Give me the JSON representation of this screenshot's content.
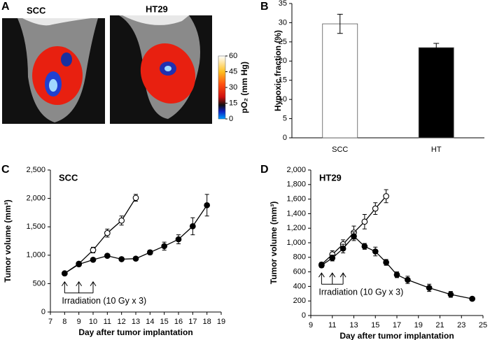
{
  "panel_a": {
    "label": "A",
    "images": [
      {
        "label": "SCC"
      },
      {
        "label": "HT29"
      }
    ],
    "colorbar": {
      "label": "pO₂ (mm Hg)",
      "lim": [
        0,
        60
      ],
      "ticks": [
        0,
        15,
        30,
        45,
        60
      ]
    }
  },
  "chart_data": [
    {
      "type": "bar",
      "panel": "B",
      "y_label": "Hypoxic fraction (%)",
      "categories": [
        "SCC",
        "HT"
      ],
      "values": [
        29.7,
        23.5
      ],
      "errors": [
        2.5,
        1.1
      ],
      "colors": [
        "#ffffff",
        "#000000"
      ],
      "ylim": [
        0,
        35
      ],
      "yticks": [
        0,
        5,
        10,
        15,
        20,
        25,
        30,
        35
      ]
    },
    {
      "type": "line",
      "panel": "C",
      "title": "SCC",
      "x_label": "Day after tumor implantation",
      "y_label": "Tumor volume (mm³)",
      "annotation": "Irradiation (10 Gy x 3)",
      "irradiation_days": [
        8,
        9,
        10
      ],
      "xlim": [
        7,
        19
      ],
      "xticks": [
        7,
        8,
        9,
        10,
        11,
        12,
        13,
        14,
        15,
        16,
        17,
        18,
        19
      ],
      "ylim": [
        0,
        2500
      ],
      "yticks": [
        0,
        500,
        {
          "value": 1000,
          "label": "1,000"
        },
        {
          "value": 1500,
          "label": "1,500"
        },
        {
          "value": 2000,
          "label": "2,000"
        },
        {
          "value": 2500,
          "label": "2,500"
        }
      ],
      "color": "#000000",
      "series": [
        {
          "marker": "open",
          "x": [
            8,
            9,
            10,
            11,
            12,
            13
          ],
          "values": [
            680,
            850,
            1090,
            1390,
            1610,
            2010
          ],
          "errors": [
            20,
            30,
            50,
            70,
            80,
            60
          ]
        },
        {
          "marker": "filled",
          "x": [
            8,
            9,
            10,
            11,
            12,
            13,
            14,
            15,
            16,
            17,
            18
          ],
          "values": [
            680,
            840,
            920,
            990,
            930,
            940,
            1050,
            1160,
            1280,
            1510,
            1880
          ],
          "errors": [
            20,
            30,
            30,
            30,
            30,
            30,
            40,
            70,
            80,
            150,
            190
          ]
        }
      ]
    },
    {
      "type": "line",
      "panel": "D",
      "title": "HT29",
      "x_label": "Day after tumor implantation",
      "y_label": "Tumor volume (mm³)",
      "annotation": "Irradiation (10 Gy x 3)",
      "irradiation_days": [
        10,
        11,
        12
      ],
      "xlim": [
        9,
        25
      ],
      "xticks": [
        9,
        11,
        13,
        15,
        17,
        19,
        21,
        23,
        25
      ],
      "ylim": [
        0,
        2000
      ],
      "yticks": [
        0,
        200,
        400,
        600,
        800,
        {
          "value": 1000,
          "label": "1,000"
        },
        {
          "value": 1200,
          "label": "1,200"
        },
        {
          "value": 1400,
          "label": "1,400"
        },
        {
          "value": 1600,
          "label": "1,600"
        },
        {
          "value": 1800,
          "label": "1,800"
        },
        {
          "value": 2000,
          "label": "2,000"
        }
      ],
      "color": "#000000",
      "series": [
        {
          "marker": "open",
          "x": [
            10,
            11,
            12,
            13,
            14,
            15,
            16
          ],
          "values": [
            700,
            840,
            980,
            1140,
            1290,
            1470,
            1640
          ],
          "errors": [
            30,
            50,
            60,
            90,
            100,
            80,
            90
          ]
        },
        {
          "marker": "filled",
          "x": [
            10,
            11,
            12,
            13,
            14,
            15,
            16,
            17,
            18,
            20,
            22,
            24
          ],
          "values": [
            690,
            790,
            920,
            1090,
            950,
            880,
            730,
            560,
            490,
            380,
            290,
            230
          ],
          "errors": [
            30,
            40,
            60,
            60,
            40,
            60,
            40,
            40,
            50,
            50,
            40,
            20
          ]
        }
      ]
    }
  ]
}
